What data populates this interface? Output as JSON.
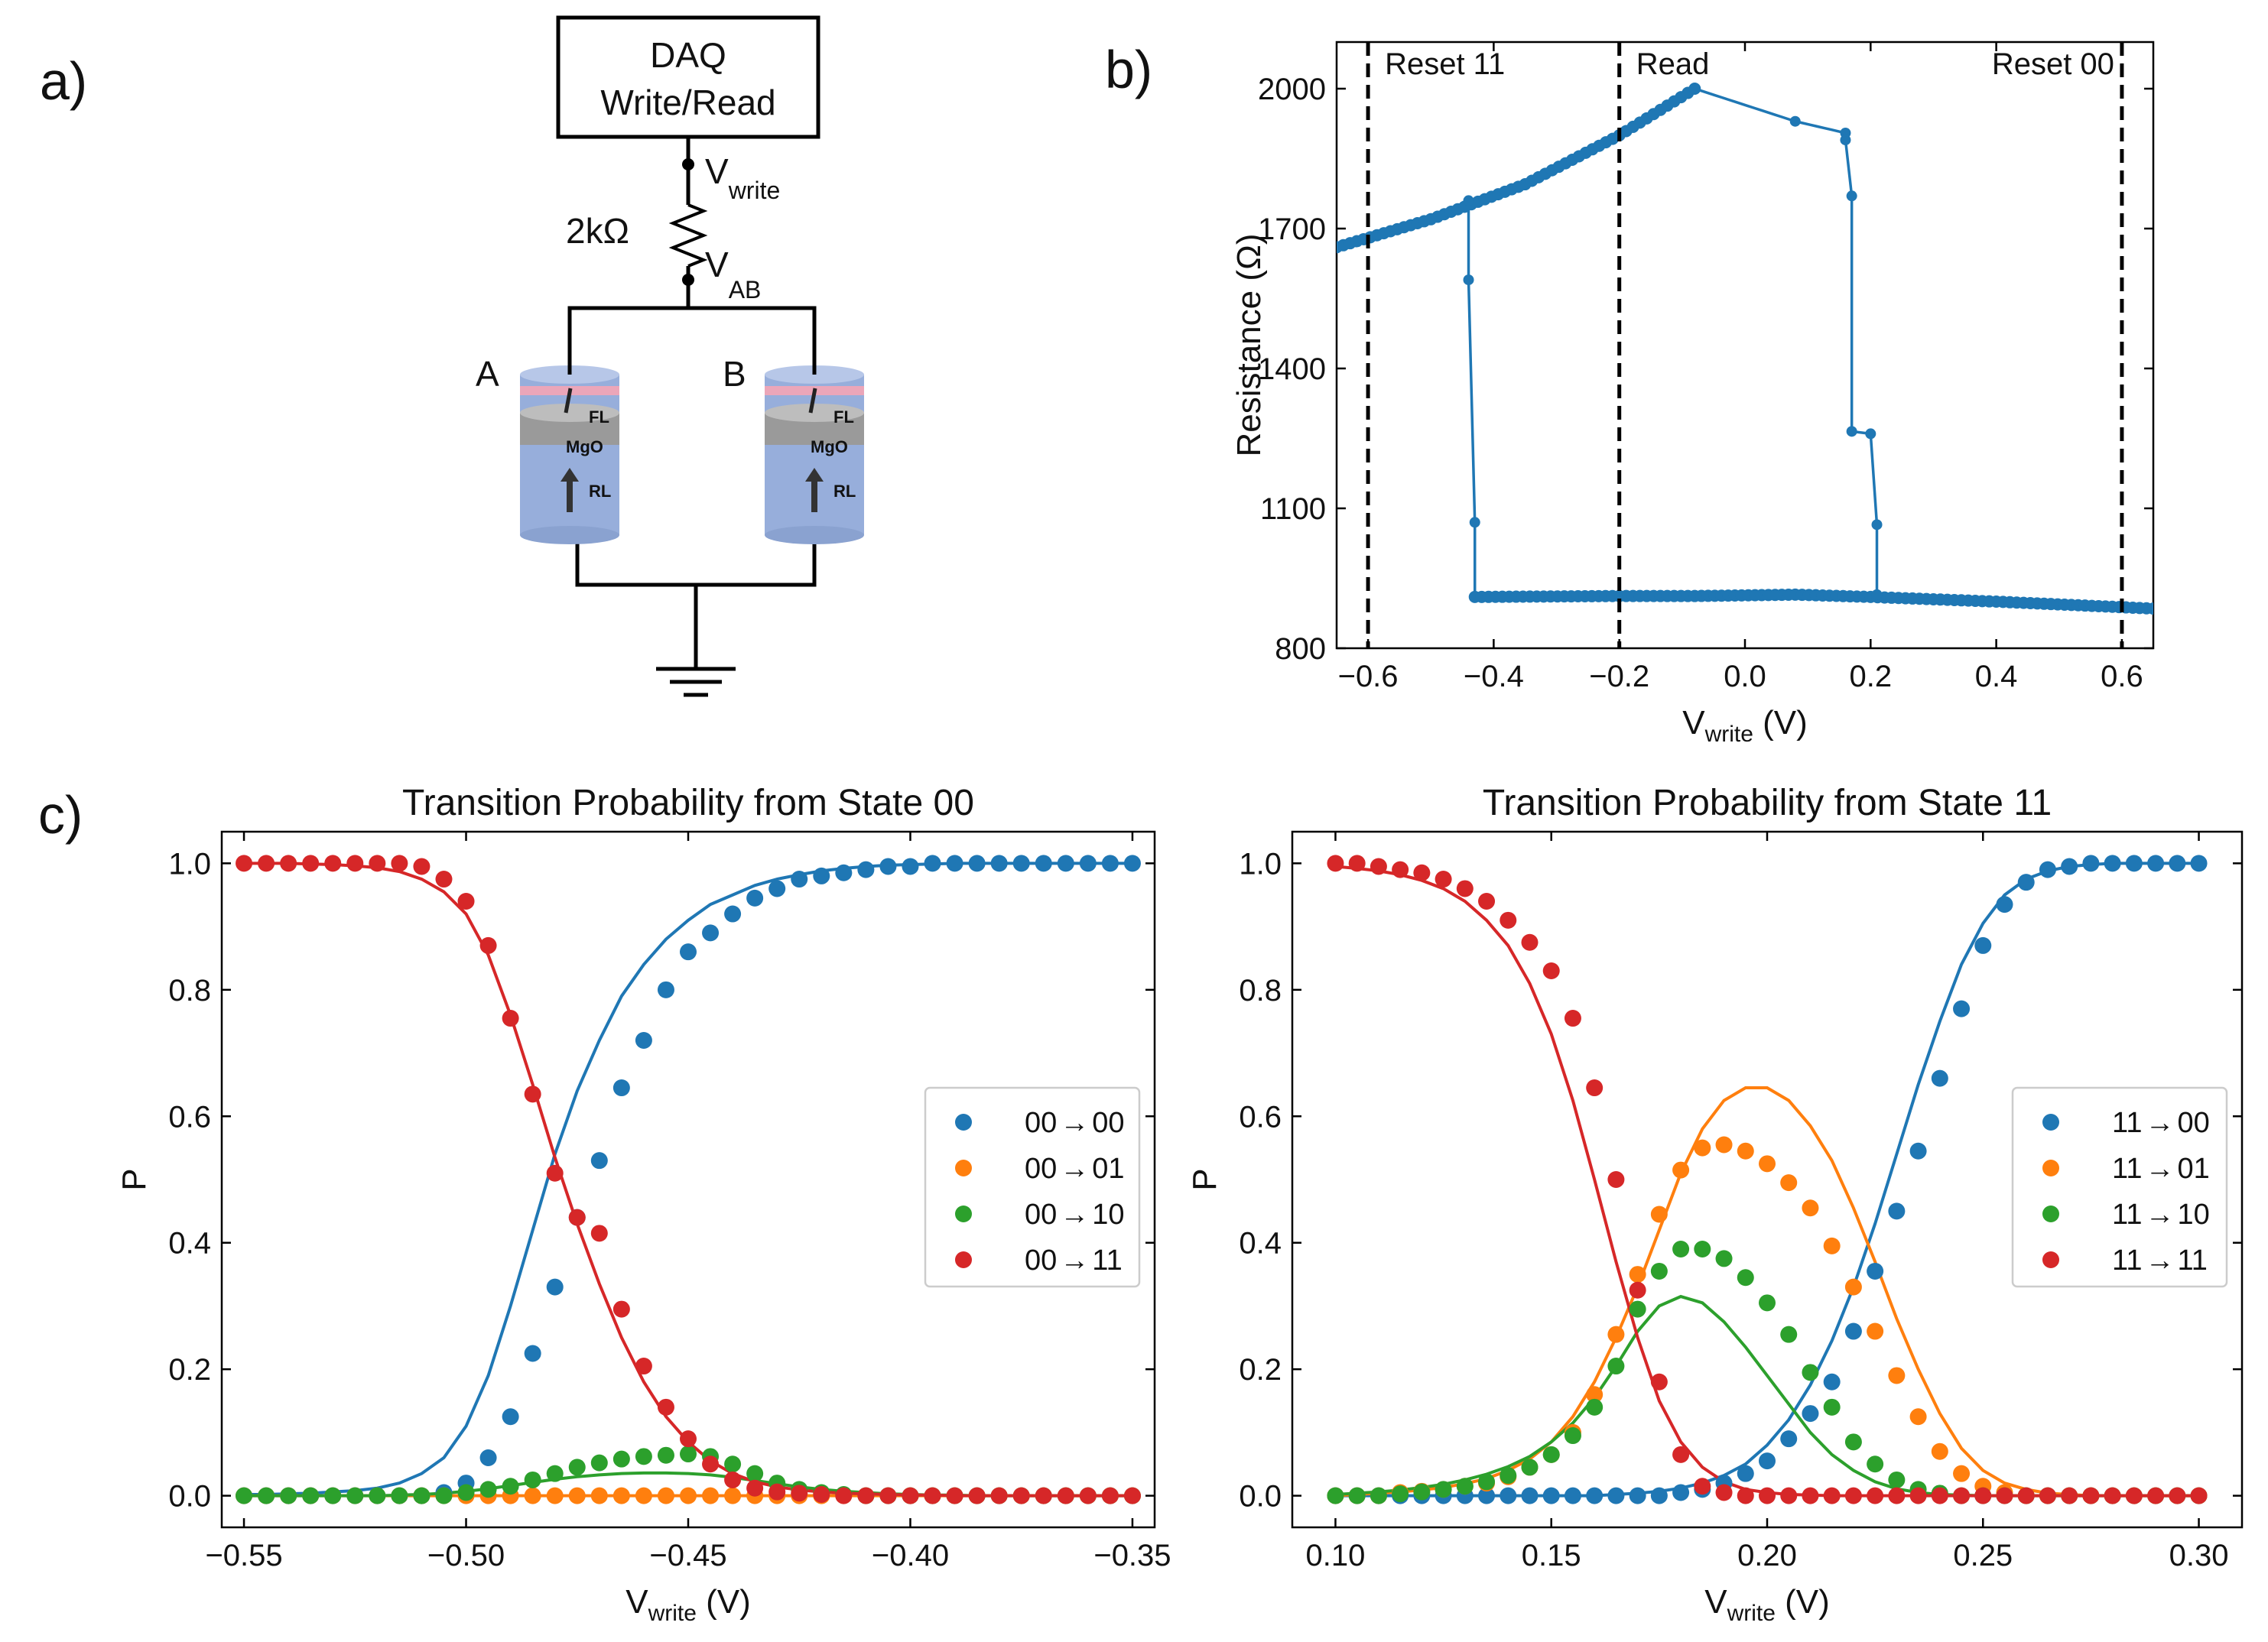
{
  "panels": {
    "a": "a)",
    "b": "b)",
    "c": "c)"
  },
  "circuit": {
    "daq_line1": "DAQ",
    "daq_line2": "Write/Read",
    "v_write": "V",
    "v_write_sub": "write",
    "v_ab": "V",
    "v_ab_sub": "AB",
    "resistor": "2kΩ",
    "label_a": "A",
    "label_b": "B",
    "layer_fl": "FL",
    "layer_mgo": "MgO",
    "layer_rl": "RL",
    "colors": {
      "pillar": "#97aedb",
      "mgo": "#9a9a9a",
      "line": "#000000",
      "pink": "#f08080"
    }
  },
  "chart_data": [
    {
      "id": "b",
      "type": "line",
      "title": "",
      "xlabel": "V",
      "xlabel_sub": "write",
      "xlabel_unit": " (V)",
      "ylabel": "Resistance (Ω)",
      "xlim": [
        -0.65,
        0.65
      ],
      "ylim": [
        800,
        2100
      ],
      "xticks": [
        -0.6,
        -0.4,
        -0.2,
        0.0,
        0.2,
        0.4,
        0.6
      ],
      "xtick_labels": [
        "−0.6",
        "−0.4",
        "−0.2",
        "0.0",
        "0.2",
        "0.4",
        "0.6"
      ],
      "yticks": [
        800,
        1100,
        1400,
        1700,
        2000
      ],
      "ytick_labels": [
        "800",
        "1100",
        "1400",
        "1700",
        "2000"
      ],
      "color": "#1f77b4",
      "vlines": [
        {
          "x": -0.6,
          "label": "Reset 11",
          "anchor": "start"
        },
        {
          "x": -0.2,
          "label": "Read",
          "anchor": "start"
        },
        {
          "x": 0.6,
          "label": "Reset 00",
          "anchor": "end"
        }
      ],
      "segments": [
        {
          "name": "high-branch",
          "x": [
            -0.65,
            -0.5,
            -0.35,
            -0.2,
            -0.08
          ],
          "y": [
            1660,
            1720,
            1795,
            1900,
            2000
          ]
        },
        {
          "name": "switch-down",
          "x": [
            -0.44,
            -0.44,
            -0.43,
            -0.43
          ],
          "y": [
            1760,
            1590,
            1070,
            910
          ]
        },
        {
          "name": "low-branch",
          "x": [
            -0.43,
            -0.2,
            -0.08,
            0.08,
            0.2,
            0.4,
            0.65
          ],
          "y": [
            910,
            912,
            912,
            915,
            910,
            900,
            885
          ]
        },
        {
          "name": "return-down",
          "x": [
            -0.08,
            0.08,
            0.16,
            0.16,
            0.17,
            0.17,
            0.2,
            0.21,
            0.21
          ],
          "y": [
            2000,
            1930,
            1905,
            1890,
            1770,
            1265,
            1260,
            1065,
            915
          ]
        }
      ]
    },
    {
      "id": "c-left",
      "type": "scatter",
      "title": "Transition Probability from State 00",
      "xlabel": "V",
      "xlabel_sub": "write",
      "xlabel_unit": " (V)",
      "ylabel": "P",
      "xlim": [
        -0.555,
        -0.345
      ],
      "ylim": [
        -0.05,
        1.05
      ],
      "xticks": [
        -0.55,
        -0.5,
        -0.45,
        -0.4,
        -0.35
      ],
      "xtick_labels": [
        "−0.55",
        "−0.50",
        "−0.45",
        "−0.40",
        "−0.35"
      ],
      "yticks": [
        0.0,
        0.2,
        0.4,
        0.6,
        0.8,
        1.0
      ],
      "ytick_labels": [
        "0.0",
        "0.2",
        "0.4",
        "0.6",
        "0.8",
        "1.0"
      ],
      "legend_position": "center-right",
      "x_start": -0.55,
      "x_step": 0.005,
      "series": [
        {
          "name": "00 → 00",
          "from": "00",
          "to": "00",
          "color": "#1f77b4",
          "points": [
            0,
            0,
            0,
            0,
            0,
            0,
            0,
            0,
            0,
            0.005,
            0.02,
            0.06,
            0.125,
            0.225,
            0.33,
            0.44,
            0.53,
            0.645,
            0.72,
            0.8,
            0.86,
            0.89,
            0.92,
            0.945,
            0.96,
            0.975,
            0.98,
            0.985,
            0.99,
            0.995,
            0.995,
            1,
            1,
            1,
            1,
            1,
            1,
            1,
            1,
            1,
            1
          ],
          "fit": [
            0.002,
            0.002,
            0.003,
            0.004,
            0.006,
            0.008,
            0.012,
            0.02,
            0.035,
            0.06,
            0.11,
            0.19,
            0.3,
            0.42,
            0.54,
            0.64,
            0.72,
            0.79,
            0.84,
            0.88,
            0.91,
            0.935,
            0.95,
            0.965,
            0.975,
            0.982,
            0.988,
            0.992,
            0.995,
            0.997,
            0.998,
            0.999,
            1,
            1,
            1,
            1,
            1,
            1,
            1,
            1,
            1
          ]
        },
        {
          "name": "00 → 01",
          "from": "00",
          "to": "01",
          "color": "#ff7f0e",
          "points": [
            0,
            0,
            0,
            0,
            0,
            0,
            0,
            0,
            0,
            0,
            0,
            0,
            0,
            0,
            0,
            0,
            0,
            0,
            0,
            0,
            0,
            0,
            0,
            0,
            0,
            0,
            0,
            0,
            0,
            0,
            0,
            0,
            0,
            0,
            0,
            0,
            0,
            0,
            0,
            0,
            0
          ],
          "fit": [
            0,
            0,
            0,
            0,
            0,
            0,
            0,
            0,
            0,
            0,
            0,
            0,
            0,
            0,
            0,
            0,
            0,
            0,
            0,
            0,
            0,
            0,
            0,
            0,
            0,
            0,
            0,
            0,
            0,
            0,
            0,
            0,
            0,
            0,
            0,
            0,
            0,
            0,
            0,
            0,
            0
          ]
        },
        {
          "name": "00 → 10",
          "from": "00",
          "to": "10",
          "color": "#2ca02c",
          "points": [
            0,
            0,
            0,
            0,
            0,
            0,
            0,
            0,
            0,
            0,
            0.005,
            0.01,
            0.015,
            0.025,
            0.035,
            0.045,
            0.052,
            0.058,
            0.062,
            0.064,
            0.066,
            0.062,
            0.05,
            0.035,
            0.02,
            0.01,
            0.005,
            0.002,
            0,
            0,
            0,
            0,
            0,
            0,
            0,
            0,
            0,
            0,
            0,
            0,
            0
          ],
          "fit": [
            0,
            0,
            0,
            0,
            0,
            0,
            0,
            0.001,
            0.002,
            0.004,
            0.007,
            0.011,
            0.016,
            0.021,
            0.026,
            0.03,
            0.033,
            0.035,
            0.036,
            0.036,
            0.035,
            0.033,
            0.029,
            0.024,
            0.019,
            0.014,
            0.01,
            0.007,
            0.005,
            0.003,
            0.002,
            0.001,
            0.001,
            0,
            0,
            0,
            0,
            0,
            0,
            0,
            0
          ]
        },
        {
          "name": "00 → 11",
          "from": "00",
          "to": "11",
          "color": "#d62728",
          "points": [
            1,
            1,
            1,
            1,
            1,
            1,
            1,
            1,
            0.995,
            0.975,
            0.94,
            0.87,
            0.755,
            0.635,
            0.51,
            0.44,
            0.415,
            0.295,
            0.205,
            0.14,
            0.09,
            0.05,
            0.025,
            0.012,
            0.006,
            0.004,
            0.002,
            0,
            0,
            0,
            0,
            0,
            0,
            0,
            0,
            0,
            0,
            0,
            0,
            0,
            0
          ],
          "fit": [
            1,
            1,
            1,
            0.999,
            0.998,
            0.996,
            0.993,
            0.987,
            0.975,
            0.955,
            0.92,
            0.855,
            0.76,
            0.65,
            0.535,
            0.43,
            0.335,
            0.25,
            0.18,
            0.125,
            0.085,
            0.055,
            0.035,
            0.022,
            0.014,
            0.009,
            0.006,
            0.004,
            0.003,
            0.002,
            0.001,
            0.001,
            0,
            0,
            0,
            0,
            0,
            0,
            0,
            0,
            0
          ]
        }
      ]
    },
    {
      "id": "c-right",
      "type": "scatter",
      "title": "Transition Probability from State 11",
      "xlabel": "V",
      "xlabel_sub": "write",
      "xlabel_unit": " (V)",
      "ylabel": "P",
      "xlim": [
        0.09,
        0.31
      ],
      "ylim": [
        -0.05,
        1.05
      ],
      "xticks": [
        0.1,
        0.15,
        0.2,
        0.25,
        0.3
      ],
      "xtick_labels": [
        "0.10",
        "0.15",
        "0.20",
        "0.25",
        "0.30"
      ],
      "yticks": [
        0.0,
        0.2,
        0.4,
        0.6,
        0.8,
        1.0
      ],
      "ytick_labels": [
        "0.0",
        "0.2",
        "0.4",
        "0.6",
        "0.8",
        "1.0"
      ],
      "legend_position": "center-right",
      "x_start": 0.1,
      "x_step": 0.005,
      "series": [
        {
          "name": "11 → 00",
          "from": "11",
          "to": "00",
          "color": "#1f77b4",
          "points": [
            0,
            0,
            0,
            0,
            0,
            0,
            0,
            0,
            0,
            0,
            0,
            0,
            0,
            0,
            0,
            0,
            0.005,
            0.01,
            0.02,
            0.035,
            0.055,
            0.09,
            0.13,
            0.18,
            0.26,
            0.355,
            0.45,
            0.545,
            0.66,
            0.77,
            0.87,
            0.935,
            0.97,
            0.99,
            0.995,
            1,
            1,
            1,
            1,
            1,
            1
          ],
          "fit": [
            0,
            0,
            0,
            0,
            0,
            0,
            0,
            0,
            0,
            0,
            0,
            0,
            0,
            0.002,
            0.004,
            0.007,
            0.012,
            0.02,
            0.032,
            0.05,
            0.08,
            0.12,
            0.175,
            0.245,
            0.33,
            0.43,
            0.54,
            0.65,
            0.75,
            0.84,
            0.905,
            0.95,
            0.975,
            0.988,
            0.995,
            0.998,
            1,
            1,
            1,
            1,
            1
          ]
        },
        {
          "name": "11 → 01",
          "from": "11",
          "to": "01",
          "color": "#ff7f0e",
          "points": [
            0,
            0,
            0,
            0.005,
            0.007,
            0.01,
            0.015,
            0.02,
            0.03,
            0.045,
            0.065,
            0.1,
            0.16,
            0.255,
            0.35,
            0.445,
            0.515,
            0.55,
            0.555,
            0.545,
            0.525,
            0.495,
            0.455,
            0.395,
            0.33,
            0.26,
            0.19,
            0.125,
            0.07,
            0.035,
            0.015,
            0.005,
            0,
            0,
            0,
            0,
            0,
            0,
            0,
            0,
            0
          ],
          "fit": [
            0,
            0.002,
            0.004,
            0.006,
            0.009,
            0.013,
            0.019,
            0.027,
            0.04,
            0.058,
            0.085,
            0.125,
            0.18,
            0.25,
            0.33,
            0.42,
            0.51,
            0.58,
            0.625,
            0.645,
            0.645,
            0.625,
            0.585,
            0.53,
            0.455,
            0.37,
            0.28,
            0.2,
            0.13,
            0.075,
            0.04,
            0.02,
            0.01,
            0.004,
            0.002,
            0,
            0,
            0,
            0,
            0,
            0
          ]
        },
        {
          "name": "11 → 10",
          "from": "11",
          "to": "10",
          "color": "#2ca02c",
          "points": [
            0,
            0,
            0,
            0.003,
            0.006,
            0.01,
            0.015,
            0.022,
            0.032,
            0.045,
            0.065,
            0.095,
            0.14,
            0.205,
            0.295,
            0.355,
            0.39,
            0.39,
            0.375,
            0.345,
            0.305,
            0.255,
            0.195,
            0.14,
            0.085,
            0.05,
            0.025,
            0.01,
            0.004,
            0,
            0,
            0,
            0,
            0,
            0,
            0,
            0,
            0,
            0,
            0,
            0
          ],
          "fit": [
            0.002,
            0.004,
            0.006,
            0.009,
            0.013,
            0.018,
            0.025,
            0.034,
            0.046,
            0.062,
            0.085,
            0.115,
            0.155,
            0.205,
            0.26,
            0.3,
            0.315,
            0.305,
            0.275,
            0.235,
            0.19,
            0.145,
            0.1,
            0.065,
            0.04,
            0.022,
            0.011,
            0.005,
            0.002,
            0.001,
            0,
            0,
            0,
            0,
            0,
            0,
            0,
            0,
            0,
            0,
            0
          ]
        },
        {
          "name": "11 → 11",
          "from": "11",
          "to": "11",
          "color": "#d62728",
          "points": [
            1,
            1,
            0.995,
            0.99,
            0.985,
            0.975,
            0.96,
            0.94,
            0.91,
            0.875,
            0.83,
            0.755,
            0.645,
            0.5,
            0.325,
            0.18,
            0.065,
            0.015,
            0.005,
            0,
            0,
            0,
            0,
            0,
            0,
            0,
            0,
            0,
            0,
            0,
            0,
            0,
            0,
            0,
            0,
            0,
            0,
            0,
            0,
            0,
            0
          ],
          "fit": [
            0.995,
            0.992,
            0.988,
            0.982,
            0.973,
            0.96,
            0.94,
            0.91,
            0.87,
            0.81,
            0.73,
            0.625,
            0.5,
            0.37,
            0.25,
            0.15,
            0.085,
            0.045,
            0.022,
            0.01,
            0.005,
            0.002,
            0.001,
            0,
            0,
            0,
            0,
            0,
            0,
            0,
            0,
            0,
            0,
            0,
            0,
            0,
            0,
            0,
            0,
            0,
            0
          ]
        }
      ]
    }
  ]
}
